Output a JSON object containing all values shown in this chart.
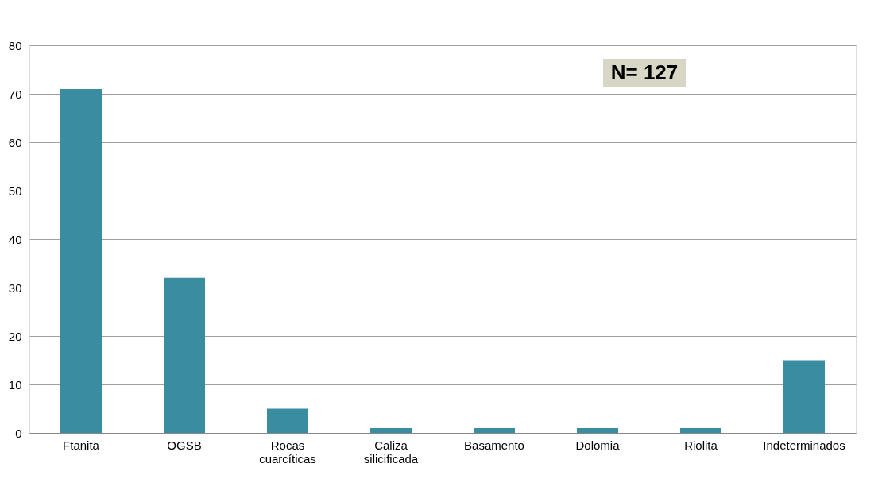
{
  "chart_data": {
    "type": "bar",
    "categories": [
      "Ftanita",
      "OGSB",
      "Rocas cuarcíticas",
      "Caliza silicificada",
      "Basamento",
      "Dolomia",
      "Riolita",
      "Indeterminados"
    ],
    "values": [
      71,
      32,
      5,
      1,
      1,
      1,
      1,
      15
    ],
    "color": "#3a8ca0",
    "ylim": [
      0,
      80
    ],
    "yticks": [
      0,
      10,
      20,
      30,
      40,
      50,
      60,
      70,
      80
    ],
    "grid": "y",
    "annotations": [
      "N= 127"
    ]
  }
}
